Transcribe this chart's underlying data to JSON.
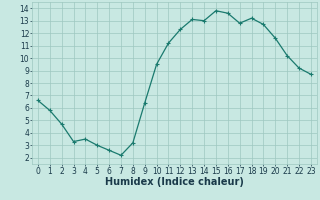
{
  "x": [
    0,
    1,
    2,
    3,
    4,
    5,
    6,
    7,
    8,
    9,
    10,
    11,
    12,
    13,
    14,
    15,
    16,
    17,
    18,
    19,
    20,
    21,
    22,
    23
  ],
  "y": [
    6.6,
    5.8,
    4.7,
    3.3,
    3.5,
    3.0,
    2.6,
    2.2,
    3.2,
    6.4,
    9.5,
    11.2,
    12.3,
    13.1,
    13.0,
    13.8,
    13.6,
    12.8,
    13.2,
    12.7,
    11.6,
    10.2,
    9.2,
    8.7
  ],
  "line_color": "#1a7a6e",
  "marker": "+",
  "marker_size": 3,
  "marker_lw": 0.8,
  "bg_color": "#c8e8e2",
  "grid_color": "#9ec8c0",
  "xlabel": "Humidex (Indice chaleur)",
  "xlim": [
    -0.5,
    23.5
  ],
  "ylim": [
    1.5,
    14.5
  ],
  "xticks": [
    0,
    1,
    2,
    3,
    4,
    5,
    6,
    7,
    8,
    9,
    10,
    11,
    12,
    13,
    14,
    15,
    16,
    17,
    18,
    19,
    20,
    21,
    22,
    23
  ],
  "yticks": [
    2,
    3,
    4,
    5,
    6,
    7,
    8,
    9,
    10,
    11,
    12,
    13,
    14
  ],
  "tick_fontsize": 5.5,
  "xlabel_fontsize": 7,
  "label_color": "#1a3a4a",
  "linewidth": 0.9
}
